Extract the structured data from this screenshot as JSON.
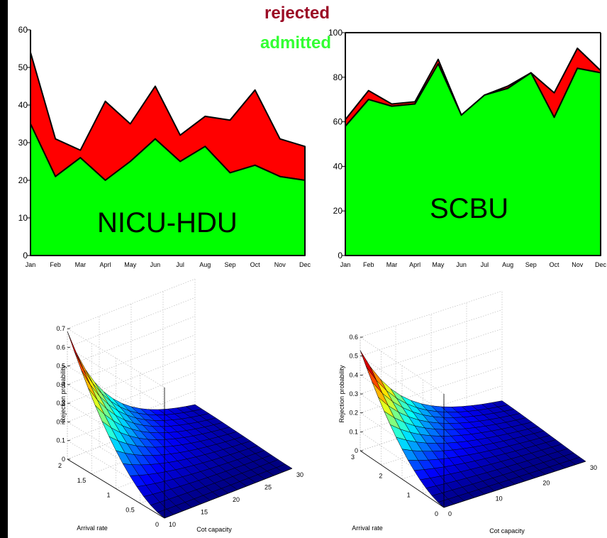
{
  "legend": {
    "rejected": "rejected",
    "admitted": "admitted"
  },
  "colors": {
    "rejected": "#ff0000",
    "admitted": "#00ff00",
    "legend_rejected_text": "#9b0a25",
    "legend_admitted_text": "#33ff33"
  },
  "chart_data": [
    {
      "type": "area",
      "stacked": true,
      "label": "NICU-HDU",
      "categories": [
        "Jan",
        "Feb",
        "Mar",
        "Aprl",
        "May",
        "Jun",
        "Jul",
        "Aug",
        "Sep",
        "Oct",
        "Nov",
        "Dec"
      ],
      "series": [
        {
          "name": "admitted",
          "values": [
            35,
            21,
            26,
            20,
            25,
            31,
            25,
            29,
            22,
            24,
            21,
            20
          ]
        },
        {
          "name": "rejected",
          "values": [
            19,
            10,
            2,
            21,
            10,
            14,
            7,
            8,
            14,
            20,
            10,
            9
          ]
        }
      ],
      "yticks": [
        "0",
        "10",
        "20",
        "30",
        "40",
        "50",
        "60"
      ],
      "ylim": [
        0,
        60
      ]
    },
    {
      "type": "area",
      "stacked": true,
      "label": "SCBU",
      "categories": [
        "Jan",
        "Feb",
        "Mar",
        "Aprl",
        "May",
        "Jun",
        "Jul",
        "Aug",
        "Sep",
        "Oct",
        "Nov",
        "Dec"
      ],
      "series": [
        {
          "name": "admitted",
          "values": [
            58,
            70,
            67,
            68,
            86,
            63,
            72,
            75,
            82,
            62,
            84,
            82
          ]
        },
        {
          "name": "rejected",
          "values": [
            3,
            4,
            1,
            1,
            2,
            0,
            0,
            1,
            0,
            11,
            9,
            1
          ]
        }
      ],
      "yticks": [
        "0",
        "20",
        "40",
        "60",
        "80",
        "100"
      ],
      "ylim": [
        0,
        100
      ]
    },
    {
      "type": "surface",
      "zlabel": "Rejection probability",
      "xlabel": "Cot capacity",
      "ylabel": "Arrival rate",
      "zticks": [
        "0",
        "0.1",
        "0.2",
        "0.3",
        "0.4",
        "0.5",
        "0.6",
        "0.7"
      ],
      "xticks": [
        "10",
        "15",
        "20",
        "25",
        "30"
      ],
      "yticks": [
        "0",
        "0.5",
        "1",
        "1.5",
        "2"
      ],
      "zlim": [
        0,
        0.7
      ],
      "peak_value": 0.65
    },
    {
      "type": "surface",
      "zlabel": "Rejection probability",
      "xlabel": "Cot capacity",
      "ylabel": "Arrival rate",
      "zticks": [
        "0",
        "0.1",
        "0.2",
        "0.3",
        "0.4",
        "0.5",
        "0.6"
      ],
      "xticks": [
        "0",
        "10",
        "20",
        "30"
      ],
      "yticks": [
        "0",
        "1",
        "2",
        "3"
      ],
      "zlim": [
        0,
        0.6
      ],
      "peak_value": 0.5
    }
  ]
}
